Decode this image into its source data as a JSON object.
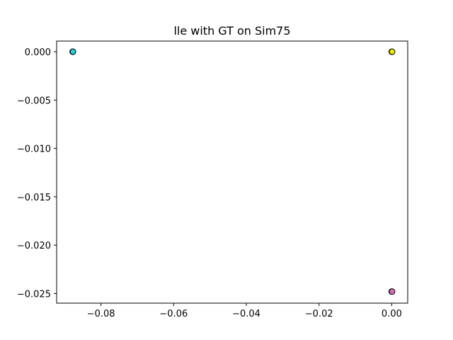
{
  "chart_data": {
    "type": "scatter",
    "title": "lle with GT on Sim75",
    "xlabel": "",
    "ylabel": "",
    "xlim": [
      -0.0922,
      0.0044
    ],
    "ylim": [
      -0.026,
      0.0011
    ],
    "x_ticks": [
      -0.08,
      -0.06,
      -0.04,
      -0.02,
      0.0
    ],
    "x_tick_labels": [
      "−0.08",
      "−0.06",
      "−0.04",
      "−0.02",
      "0.00"
    ],
    "y_ticks": [
      0.0,
      -0.005,
      -0.01,
      -0.015,
      -0.02,
      -0.025
    ],
    "y_tick_labels": [
      "0.000",
      "−0.005",
      "−0.010",
      "−0.015",
      "−0.020",
      "−0.025"
    ],
    "grid": false,
    "legend": "none",
    "marker_edge_color": "#000000",
    "points": [
      {
        "x": -0.0878,
        "y": 0.0,
        "color": "#17becf"
      },
      {
        "x": -0.0877,
        "y": 0.0,
        "color": "#1fd0e0"
      },
      {
        "x": 0.0,
        "y": 0.0,
        "color": "#ffff00"
      },
      {
        "x": 0.0001,
        "y": 0.0,
        "color": "#e8e800"
      },
      {
        "x": 0.0,
        "y": -0.0248,
        "color": "#e377c2"
      },
      {
        "x": 0.0001,
        "y": -0.0248,
        "color": "#d36fb4"
      }
    ]
  }
}
